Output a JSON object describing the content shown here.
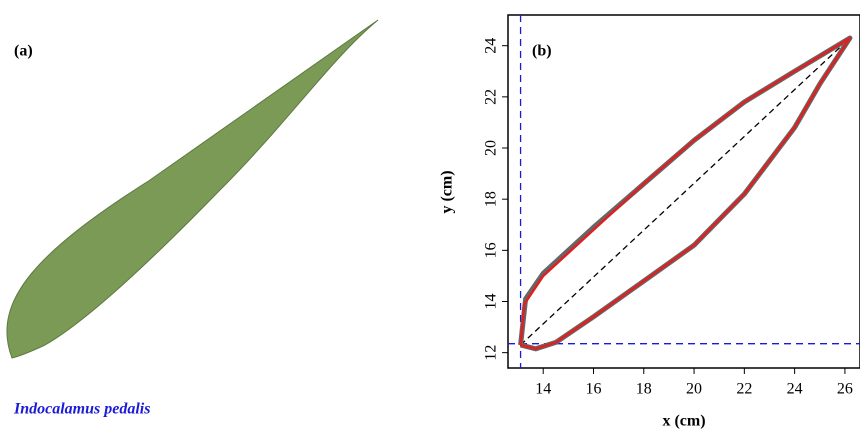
{
  "panel_a": {
    "label": "(a)",
    "caption": "Indocalamus pedalis"
  },
  "chart_data": {
    "type": "line",
    "label": "(b)",
    "x_label": "x (cm)",
    "y_label": "y (cm)",
    "xlim": [
      12.6,
      26.6
    ],
    "ylim": [
      11.4,
      25.2
    ],
    "xticks": [
      14,
      16,
      18,
      20,
      22,
      24,
      26
    ],
    "yticks": [
      12,
      14,
      16,
      18,
      20,
      22,
      24
    ],
    "vline": 13.1,
    "hline": 12.35,
    "diagonal": [
      [
        13.1,
        12.3
      ],
      [
        26.2,
        24.3
      ]
    ],
    "series": [
      {
        "color": "#666666",
        "width": 5,
        "x": [
          13.1,
          13.3,
          14,
          16,
          18,
          20,
          22,
          24,
          26.2,
          25,
          24,
          22,
          20,
          18,
          16,
          14.5,
          13.7,
          13.1
        ],
        "y": [
          12.3,
          14.1,
          15.1,
          16.9,
          18.6,
          20.3,
          21.8,
          23,
          24.3,
          22.5,
          20.8,
          18.2,
          16.2,
          14.8,
          13.4,
          12.4,
          12.15,
          12.3
        ]
      },
      {
        "color": "#e02020",
        "width": 2.5,
        "x": [
          13.1,
          13.25,
          14,
          16,
          18,
          20,
          22,
          24,
          26.2,
          25,
          24,
          22,
          20,
          18,
          16,
          14.5,
          13.7,
          13.1
        ],
        "y": [
          12.3,
          13.9,
          15.0,
          16.8,
          18.6,
          20.3,
          21.8,
          23,
          24.3,
          22.5,
          20.8,
          18.2,
          16.2,
          14.8,
          13.4,
          12.4,
          12.15,
          12.3
        ]
      }
    ]
  }
}
